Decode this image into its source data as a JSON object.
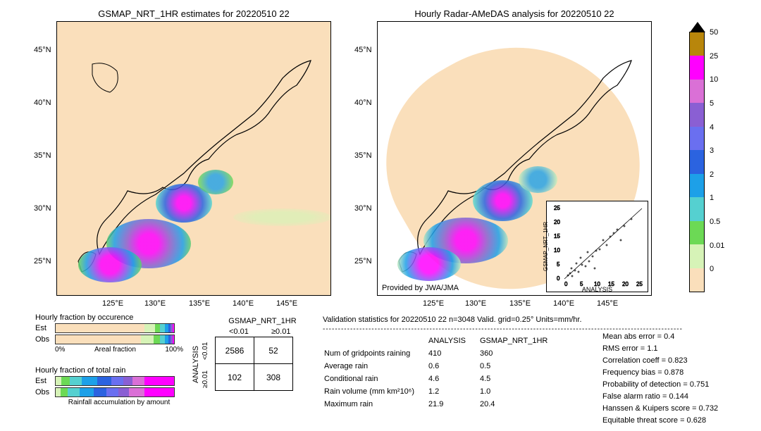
{
  "timestamp": "20220510 22",
  "left_map": {
    "title": "GSMAP_NRT_1HR estimates for 20220510 22",
    "xlim": [
      118,
      150
    ],
    "ylim": [
      22,
      48
    ],
    "xticks": [
      "125°E",
      "130°E",
      "135°E",
      "140°E",
      "145°E"
    ],
    "yticks": [
      "25°N",
      "30°N",
      "35°N",
      "40°N",
      "45°N"
    ],
    "bg_color": "#fadfbb"
  },
  "right_map": {
    "title": "Hourly Radar-AMeDAS analysis for 20220510 22",
    "xlim": [
      118,
      150
    ],
    "ylim": [
      22,
      48
    ],
    "xticks": [
      "125°E",
      "130°E",
      "135°E",
      "140°E",
      "145°E"
    ],
    "yticks": [
      "25°N",
      "30°N",
      "35°N",
      "40°N",
      "45°N"
    ],
    "bg_color": "#ffffff",
    "attribution": "Provided by JWA/JMA"
  },
  "colorbar": {
    "levels": [
      "50",
      "25",
      "10",
      "5",
      "4",
      "3",
      "2",
      "1",
      "0.5",
      "0.01",
      "0"
    ],
    "colors": [
      "#b8860b",
      "#ff00ff",
      "#da70d6",
      "#8a5fd3",
      "#6a6ff0",
      "#2b63e0",
      "#1da0e8",
      "#55d0d0",
      "#6cd955",
      "#d6f3b7",
      "#fadfbb"
    ]
  },
  "occurrence": {
    "title": "Hourly fraction by occurence",
    "axis_label": "Areal fraction",
    "ticks": [
      "0%",
      "100%"
    ],
    "est": [
      {
        "w": 75,
        "c": "#fadfbb"
      },
      {
        "w": 9,
        "c": "#d6f3b7"
      },
      {
        "w": 4,
        "c": "#6cd955"
      },
      {
        "w": 4,
        "c": "#55d0d0"
      },
      {
        "w": 3,
        "c": "#1da0e8"
      },
      {
        "w": 2,
        "c": "#2b63e0"
      },
      {
        "w": 2,
        "c": "#8a5fd3"
      },
      {
        "w": 1,
        "c": "#ff00ff"
      }
    ],
    "obs": [
      {
        "w": 72,
        "c": "#fadfbb"
      },
      {
        "w": 11,
        "c": "#d6f3b7"
      },
      {
        "w": 5,
        "c": "#6cd955"
      },
      {
        "w": 4,
        "c": "#55d0d0"
      },
      {
        "w": 3,
        "c": "#1da0e8"
      },
      {
        "w": 2,
        "c": "#2b63e0"
      },
      {
        "w": 2,
        "c": "#8a5fd3"
      },
      {
        "w": 1,
        "c": "#ff00ff"
      }
    ]
  },
  "total_rain": {
    "title": "Hourly fraction of total rain",
    "axis_label": "Rainfall accumulation by amount",
    "est": [
      {
        "w": 5,
        "c": "#d6f3b7"
      },
      {
        "w": 7,
        "c": "#6cd955"
      },
      {
        "w": 10,
        "c": "#55d0d0"
      },
      {
        "w": 13,
        "c": "#1da0e8"
      },
      {
        "w": 12,
        "c": "#2b63e0"
      },
      {
        "w": 10,
        "c": "#6a6ff0"
      },
      {
        "w": 8,
        "c": "#8a5fd3"
      },
      {
        "w": 10,
        "c": "#da70d6"
      },
      {
        "w": 25,
        "c": "#ff00ff"
      }
    ],
    "obs": [
      {
        "w": 4,
        "c": "#d6f3b7"
      },
      {
        "w": 6,
        "c": "#6cd955"
      },
      {
        "w": 10,
        "c": "#55d0d0"
      },
      {
        "w": 12,
        "c": "#1da0e8"
      },
      {
        "w": 11,
        "c": "#2b63e0"
      },
      {
        "w": 10,
        "c": "#6a6ff0"
      },
      {
        "w": 9,
        "c": "#8a5fd3"
      },
      {
        "w": 13,
        "c": "#da70d6"
      },
      {
        "w": 25,
        "c": "#ff00ff"
      }
    ]
  },
  "contingency": {
    "col_header": "GSMAP_NRT_1HR",
    "row_header": "ANALYSIS",
    "col_labels": [
      "<0.01",
      "≥0.01"
    ],
    "row_labels": [
      "<0.01",
      "≥0.01"
    ],
    "cells": [
      [
        "2586",
        "52"
      ],
      [
        "102",
        "308"
      ]
    ]
  },
  "validation": {
    "title": "Validation statistics for 20220510 22  n=3048 Valid. grid=0.25°  Units=mm/hr.",
    "col_headers": [
      "ANALYSIS",
      "GSMAP_NRT_1HR"
    ],
    "rows": [
      {
        "label": "Num of gridpoints raining",
        "a": "410",
        "b": "360"
      },
      {
        "label": "Average rain",
        "a": "0.6",
        "b": "0.5"
      },
      {
        "label": "Conditional rain",
        "a": "4.6",
        "b": "4.5"
      },
      {
        "label": "Rain volume (mm km²10⁶)",
        "a": "1.2",
        "b": "1.0"
      },
      {
        "label": "Maximum rain",
        "a": "21.9",
        "b": "20.4"
      }
    ]
  },
  "metrics": [
    "Mean abs error =   0.4",
    "RMS error =   1.1",
    "Correlation coeff =  0.823",
    "Frequency bias =  0.878",
    "Probability of detection =  0.751",
    "False alarm ratio =  0.144",
    "Hanssen & Kuipers score =  0.732",
    "Equitable threat score =  0.628"
  ],
  "scatter": {
    "xlabel": "ANALYSIS",
    "ylabel": "GSMAP_NRT_1HR",
    "xlim": [
      0,
      25
    ],
    "ylim": [
      0,
      25
    ],
    "ticks": [
      "0",
      "5",
      "10",
      "15",
      "20",
      "25"
    ]
  },
  "labels": {
    "est": "Est",
    "obs": "Obs"
  }
}
